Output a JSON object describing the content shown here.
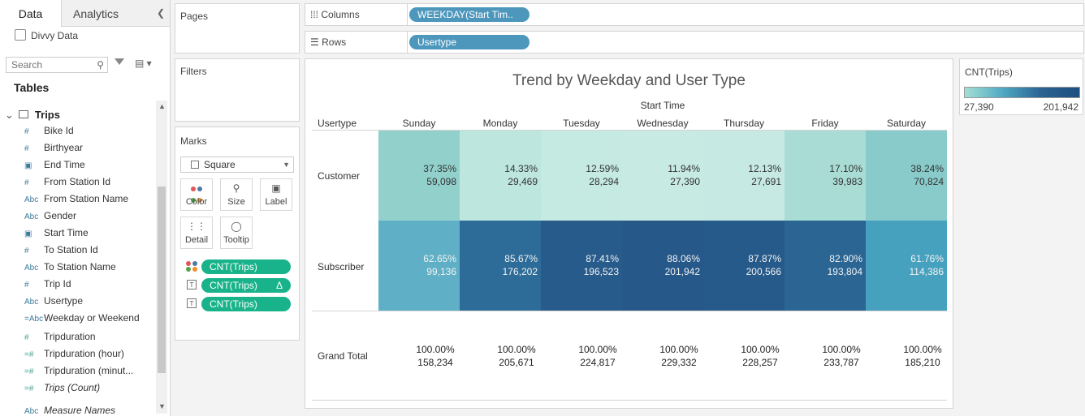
{
  "left_panel": {
    "tab_data": "Data",
    "tab_analytics": "Analytics",
    "datasource": "Divvy Data",
    "search_placeholder": "Search",
    "tables_header": "Tables",
    "table_name": "Trips",
    "fields": [
      {
        "icon": "#",
        "name": "Bike Id"
      },
      {
        "icon": "#",
        "name": "Birthyear"
      },
      {
        "icon": "▣",
        "name": "End Time"
      },
      {
        "icon": "#",
        "name": "From Station Id"
      },
      {
        "icon": "Abc",
        "name": "From Station Name"
      },
      {
        "icon": "Abc",
        "name": "Gender"
      },
      {
        "icon": "▣",
        "name": "Start Time"
      },
      {
        "icon": "#",
        "name": "To Station Id"
      },
      {
        "icon": "Abc",
        "name": "To Station Name"
      },
      {
        "icon": "#",
        "name": "Trip Id"
      },
      {
        "icon": "Abc",
        "name": "Usertype"
      },
      {
        "icon": "=Abc",
        "name": "Weekday or Weekend"
      },
      {
        "icon": "#",
        "name": "Tripduration"
      },
      {
        "icon": "=#",
        "name": "Tripduration (hour)"
      },
      {
        "icon": "=#",
        "name": "Tripduration (minut..."
      },
      {
        "icon": "=#",
        "name": "Trips (Count)"
      },
      {
        "icon": "Abc",
        "name": "Measure Names"
      }
    ]
  },
  "pages_title": "Pages",
  "filters_title": "Filters",
  "marks": {
    "title": "Marks",
    "type": "Square",
    "buttons": [
      "Color",
      "Size",
      "Label",
      "Detail",
      "Tooltip"
    ],
    "pills": [
      "CNT(Trips)",
      "CNT(Trips)",
      "CNT(Trips)"
    ],
    "delta": "Δ"
  },
  "shelves": {
    "columns_label": "Columns",
    "columns_pill": "WEEKDAY(Start Tim..",
    "rows_label": "Rows",
    "rows_pill": "Usertype"
  },
  "view": {
    "title": "Trend by Weekday and User Type",
    "column_group_label": "Start Time",
    "row_header_label": "Usertype",
    "days": [
      "Sunday",
      "Monday",
      "Tuesday",
      "Wednesday",
      "Thursday",
      "Friday",
      "Saturday"
    ],
    "rows": [
      {
        "label": "Customer",
        "pcts": [
          "37.35%",
          "14.33%",
          "12.59%",
          "11.94%",
          "12.13%",
          "17.10%",
          "38.24%"
        ],
        "counts": [
          "59,098",
          "29,469",
          "28,294",
          "27,390",
          "27,691",
          "39,983",
          "70,824"
        ]
      },
      {
        "label": "Subscriber",
        "pcts": [
          "62.65%",
          "85.67%",
          "87.41%",
          "88.06%",
          "87.87%",
          "82.90%",
          "61.76%"
        ],
        "counts": [
          "99,136",
          "176,202",
          "196,523",
          "201,942",
          "200,566",
          "193,804",
          "114,386"
        ]
      }
    ],
    "grand_total": {
      "label": "Grand Total",
      "pcts": [
        "100.00%",
        "100.00%",
        "100.00%",
        "100.00%",
        "100.00%",
        "100.00%",
        "100.00%"
      ],
      "counts": [
        "158,234",
        "205,671",
        "224,817",
        "229,332",
        "228,257",
        "233,787",
        "185,210"
      ]
    },
    "cell_colors": {
      "Customer": [
        "#92d0cb",
        "#bde6df",
        "#c5eae2",
        "#c7eae3",
        "#c6eae3",
        "#a9dcd5",
        "#89cbcb"
      ],
      "Subscriber": [
        "#5fb0c6",
        "#2d6b98",
        "#275b8b",
        "#265889",
        "#265a8a",
        "#2a6593",
        "#46a1be"
      ]
    }
  },
  "legend": {
    "title": "CNT(Trips)",
    "min": "27,390",
    "max": "201,942"
  }
}
